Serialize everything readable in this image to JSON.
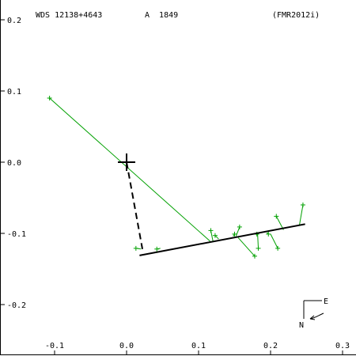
{
  "header": {
    "wds_id": "WDS 12138+4643",
    "discoverer": "A  1849",
    "reference": "(FMR2012i)"
  },
  "compass": {
    "east_label": "E",
    "north_label": "N"
  },
  "chart_data": {
    "type": "scatter",
    "xlim": [
      -0.17,
      0.32
    ],
    "ylim": [
      -0.26,
      0.22
    ],
    "x_ticks": [
      -0.1,
      0.0,
      0.1,
      0.2,
      0.3
    ],
    "x_tick_labels": [
      "-0.1",
      "0.0",
      "0.1",
      "0.2",
      "0.3"
    ],
    "y_ticks": [
      0.2,
      0.1,
      0.0,
      -0.1,
      -0.2
    ],
    "y_tick_labels": [
      "0.2",
      "0.1",
      "0.0",
      "-0.1",
      "-0.2"
    ],
    "primary": {
      "x": 0.0,
      "y": 0.0
    },
    "orbit_line": {
      "x1": 0.018,
      "y1": -0.131,
      "x2": 0.248,
      "y2": -0.087
    },
    "periastron_dashed": {
      "x1": 0.0,
      "y1": 0.0,
      "x2": 0.022,
      "y2": -0.122
    },
    "observations": [
      {
        "x": -0.107,
        "y": 0.09,
        "xp": 0.116,
        "yp": -0.111
      },
      {
        "x": 0.013,
        "y": -0.121,
        "xp": 0.02,
        "yp": -0.122
      },
      {
        "x": 0.042,
        "y": -0.122,
        "xp": 0.047,
        "yp": -0.121
      },
      {
        "x": 0.117,
        "y": -0.096,
        "xp": 0.12,
        "yp": -0.111
      },
      {
        "x": 0.123,
        "y": -0.103,
        "xp": 0.128,
        "yp": -0.108
      },
      {
        "x": 0.178,
        "y": -0.132,
        "xp": 0.155,
        "yp": -0.106
      },
      {
        "x": 0.157,
        "y": -0.091,
        "xp": 0.152,
        "yp": -0.104
      },
      {
        "x": 0.15,
        "y": -0.101,
        "xp": 0.148,
        "yp": -0.104
      },
      {
        "x": 0.183,
        "y": -0.121,
        "xp": 0.182,
        "yp": -0.101
      },
      {
        "x": 0.181,
        "y": -0.101,
        "xp": 0.18,
        "yp": -0.102
      },
      {
        "x": 0.197,
        "y": -0.101,
        "xp": 0.195,
        "yp": -0.099
      },
      {
        "x": 0.21,
        "y": -0.121,
        "xp": 0.2,
        "yp": -0.101
      },
      {
        "x": 0.208,
        "y": -0.076,
        "xp": 0.218,
        "yp": -0.095
      },
      {
        "x": 0.245,
        "y": -0.06,
        "xp": 0.24,
        "yp": -0.089
      }
    ],
    "colors": {
      "observation": "#00a000",
      "orbit": "#000000",
      "axes": "#000000"
    }
  }
}
